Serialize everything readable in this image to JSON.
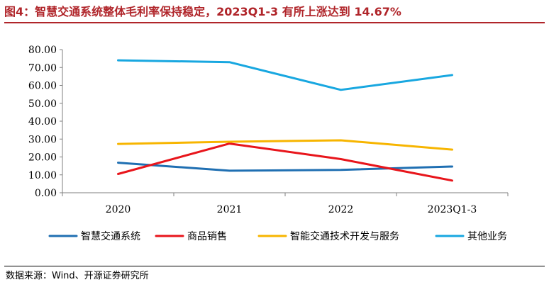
{
  "header": {
    "title": "图4：智慧交通系统整体毛利率保持稳定，2023Q1-3 有所上涨达到 14.67%"
  },
  "footer": {
    "source": "数据来源：Wind、开源证券研究所"
  },
  "chart_data": {
    "type": "line",
    "categories": [
      "2020",
      "2021",
      "2022",
      "2023Q1-3"
    ],
    "ylim": [
      0,
      80
    ],
    "yticks": [
      "0.00",
      "10.00",
      "20.00",
      "30.00",
      "40.00",
      "50.00",
      "60.00",
      "70.00",
      "80.00"
    ],
    "grid": false,
    "legend_position": "bottom",
    "series": [
      {
        "name": "智慧交通系统",
        "color": "#1f6fb2",
        "values": [
          16.8,
          12.3,
          12.8,
          14.67
        ]
      },
      {
        "name": "商品销售",
        "color": "#e8151b",
        "values": [
          10.5,
          27.5,
          18.8,
          6.8
        ]
      },
      {
        "name": "智能交通技术开发与服务",
        "color": "#f7b500",
        "values": [
          27.3,
          28.5,
          29.3,
          24.1
        ]
      },
      {
        "name": "其他业务",
        "color": "#18a7e0",
        "values": [
          74.0,
          73.0,
          57.5,
          65.8
        ]
      }
    ]
  }
}
